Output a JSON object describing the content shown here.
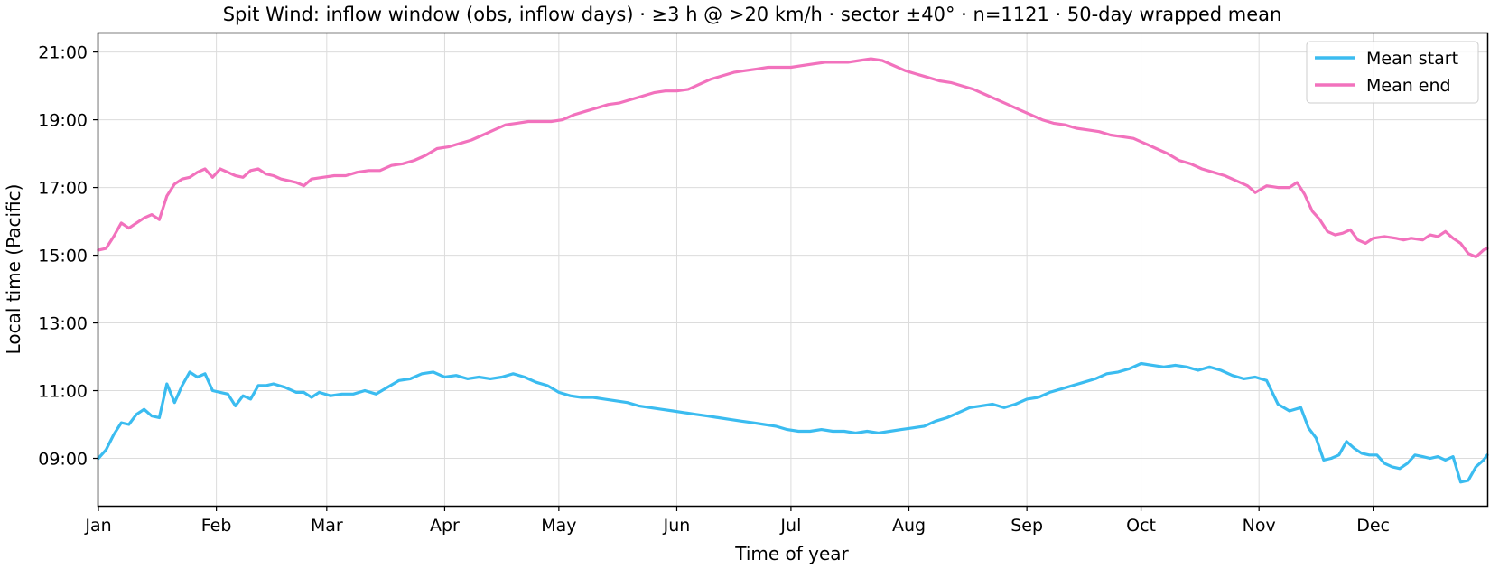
{
  "chart_data": {
    "type": "line",
    "title": "Spit Wind: inflow window (obs, inflow days) · ≥3 h @ >20 km/h · sector ±40° · n=1121 · 50-day wrapped mean",
    "xlabel": "Time of year",
    "ylabel": "Local time (Pacific)",
    "x_unit": "day of year",
    "xlim": [
      1,
      366
    ],
    "ylim": [
      7.6,
      21.55
    ],
    "y_unit": "hours (local time)",
    "x_ticks": [
      {
        "label": "Jan",
        "value": 1
      },
      {
        "label": "Feb",
        "value": 32
      },
      {
        "label": "Mar",
        "value": 61
      },
      {
        "label": "Apr",
        "value": 92
      },
      {
        "label": "May",
        "value": 122
      },
      {
        "label": "Jun",
        "value": 153
      },
      {
        "label": "Jul",
        "value": 183
      },
      {
        "label": "Aug",
        "value": 214
      },
      {
        "label": "Sep",
        "value": 245
      },
      {
        "label": "Oct",
        "value": 275
      },
      {
        "label": "Nov",
        "value": 306
      },
      {
        "label": "Dec",
        "value": 336
      }
    ],
    "y_ticks": [
      {
        "label": "09:00",
        "value": 9
      },
      {
        "label": "11:00",
        "value": 11
      },
      {
        "label": "13:00",
        "value": 13
      },
      {
        "label": "15:00",
        "value": 15
      },
      {
        "label": "17:00",
        "value": 17
      },
      {
        "label": "19:00",
        "value": 19
      },
      {
        "label": "21:00",
        "value": 21
      }
    ],
    "grid": true,
    "legend_position": "top-right",
    "series": [
      {
        "name": "Mean start",
        "color": "#3bbcf0",
        "points": [
          [
            1,
            9.0
          ],
          [
            3,
            9.25
          ],
          [
            5,
            9.7
          ],
          [
            7,
            10.05
          ],
          [
            9,
            10.0
          ],
          [
            11,
            10.3
          ],
          [
            13,
            10.45
          ],
          [
            15,
            10.25
          ],
          [
            17,
            10.2
          ],
          [
            19,
            11.2
          ],
          [
            21,
            10.65
          ],
          [
            23,
            11.15
          ],
          [
            25,
            11.55
          ],
          [
            27,
            11.4
          ],
          [
            29,
            11.5
          ],
          [
            31,
            11.0
          ],
          [
            33,
            10.95
          ],
          [
            35,
            10.9
          ],
          [
            37,
            10.55
          ],
          [
            39,
            10.85
          ],
          [
            41,
            10.75
          ],
          [
            43,
            11.15
          ],
          [
            45,
            11.15
          ],
          [
            47,
            11.2
          ],
          [
            50,
            11.1
          ],
          [
            53,
            10.95
          ],
          [
            55,
            10.95
          ],
          [
            57,
            10.8
          ],
          [
            59,
            10.95
          ],
          [
            62,
            10.85
          ],
          [
            65,
            10.9
          ],
          [
            68,
            10.9
          ],
          [
            71,
            11.0
          ],
          [
            74,
            10.9
          ],
          [
            77,
            11.1
          ],
          [
            80,
            11.3
          ],
          [
            83,
            11.35
          ],
          [
            86,
            11.5
          ],
          [
            89,
            11.55
          ],
          [
            92,
            11.4
          ],
          [
            95,
            11.45
          ],
          [
            98,
            11.35
          ],
          [
            101,
            11.4
          ],
          [
            104,
            11.35
          ],
          [
            107,
            11.4
          ],
          [
            110,
            11.5
          ],
          [
            113,
            11.4
          ],
          [
            116,
            11.25
          ],
          [
            119,
            11.15
          ],
          [
            122,
            10.95
          ],
          [
            125,
            10.85
          ],
          [
            128,
            10.8
          ],
          [
            131,
            10.8
          ],
          [
            134,
            10.75
          ],
          [
            137,
            10.7
          ],
          [
            140,
            10.65
          ],
          [
            143,
            10.55
          ],
          [
            146,
            10.5
          ],
          [
            149,
            10.45
          ],
          [
            152,
            10.4
          ],
          [
            155,
            10.35
          ],
          [
            158,
            10.3
          ],
          [
            161,
            10.25
          ],
          [
            164,
            10.2
          ],
          [
            167,
            10.15
          ],
          [
            170,
            10.1
          ],
          [
            173,
            10.05
          ],
          [
            176,
            10.0
          ],
          [
            179,
            9.95
          ],
          [
            182,
            9.85
          ],
          [
            185,
            9.8
          ],
          [
            188,
            9.8
          ],
          [
            191,
            9.85
          ],
          [
            194,
            9.8
          ],
          [
            197,
            9.8
          ],
          [
            200,
            9.75
          ],
          [
            203,
            9.8
          ],
          [
            206,
            9.75
          ],
          [
            209,
            9.8
          ],
          [
            212,
            9.85
          ],
          [
            215,
            9.9
          ],
          [
            218,
            9.95
          ],
          [
            221,
            10.1
          ],
          [
            224,
            10.2
          ],
          [
            227,
            10.35
          ],
          [
            230,
            10.5
          ],
          [
            233,
            10.55
          ],
          [
            236,
            10.6
          ],
          [
            239,
            10.5
          ],
          [
            242,
            10.6
          ],
          [
            245,
            10.75
          ],
          [
            248,
            10.8
          ],
          [
            251,
            10.95
          ],
          [
            254,
            11.05
          ],
          [
            257,
            11.15
          ],
          [
            260,
            11.25
          ],
          [
            263,
            11.35
          ],
          [
            266,
            11.5
          ],
          [
            269,
            11.55
          ],
          [
            272,
            11.65
          ],
          [
            275,
            11.8
          ],
          [
            278,
            11.75
          ],
          [
            281,
            11.7
          ],
          [
            284,
            11.75
          ],
          [
            287,
            11.7
          ],
          [
            290,
            11.6
          ],
          [
            293,
            11.7
          ],
          [
            296,
            11.6
          ],
          [
            299,
            11.45
          ],
          [
            302,
            11.35
          ],
          [
            305,
            11.4
          ],
          [
            308,
            11.3
          ],
          [
            311,
            10.6
          ],
          [
            314,
            10.4
          ],
          [
            317,
            10.5
          ],
          [
            319,
            9.9
          ],
          [
            321,
            9.6
          ],
          [
            323,
            8.95
          ],
          [
            325,
            9.0
          ],
          [
            327,
            9.1
          ],
          [
            329,
            9.5
          ],
          [
            331,
            9.3
          ],
          [
            333,
            9.15
          ],
          [
            335,
            9.1
          ],
          [
            337,
            9.1
          ],
          [
            339,
            8.85
          ],
          [
            341,
            8.75
          ],
          [
            343,
            8.7
          ],
          [
            345,
            8.85
          ],
          [
            347,
            9.1
          ],
          [
            349,
            9.05
          ],
          [
            351,
            9.0
          ],
          [
            353,
            9.05
          ],
          [
            355,
            8.95
          ],
          [
            357,
            9.05
          ],
          [
            359,
            8.3
          ],
          [
            361,
            8.35
          ],
          [
            363,
            8.75
          ],
          [
            365,
            8.95
          ],
          [
            366,
            9.1
          ]
        ]
      },
      {
        "name": "Mean end",
        "color": "#f272bd",
        "points": [
          [
            1,
            15.15
          ],
          [
            3,
            15.2
          ],
          [
            5,
            15.55
          ],
          [
            7,
            15.95
          ],
          [
            9,
            15.8
          ],
          [
            11,
            15.95
          ],
          [
            13,
            16.1
          ],
          [
            15,
            16.2
          ],
          [
            17,
            16.05
          ],
          [
            19,
            16.75
          ],
          [
            21,
            17.1
          ],
          [
            23,
            17.25
          ],
          [
            25,
            17.3
          ],
          [
            27,
            17.45
          ],
          [
            29,
            17.55
          ],
          [
            31,
            17.3
          ],
          [
            33,
            17.55
          ],
          [
            35,
            17.45
          ],
          [
            37,
            17.35
          ],
          [
            39,
            17.3
          ],
          [
            41,
            17.5
          ],
          [
            43,
            17.55
          ],
          [
            45,
            17.4
          ],
          [
            47,
            17.35
          ],
          [
            49,
            17.25
          ],
          [
            51,
            17.2
          ],
          [
            53,
            17.15
          ],
          [
            55,
            17.05
          ],
          [
            57,
            17.25
          ],
          [
            60,
            17.3
          ],
          [
            63,
            17.35
          ],
          [
            66,
            17.35
          ],
          [
            69,
            17.45
          ],
          [
            72,
            17.5
          ],
          [
            75,
            17.5
          ],
          [
            78,
            17.65
          ],
          [
            81,
            17.7
          ],
          [
            84,
            17.8
          ],
          [
            87,
            17.95
          ],
          [
            90,
            18.15
          ],
          [
            93,
            18.2
          ],
          [
            96,
            18.3
          ],
          [
            99,
            18.4
          ],
          [
            102,
            18.55
          ],
          [
            105,
            18.7
          ],
          [
            108,
            18.85
          ],
          [
            111,
            18.9
          ],
          [
            114,
            18.95
          ],
          [
            117,
            18.95
          ],
          [
            120,
            18.95
          ],
          [
            123,
            19.0
          ],
          [
            126,
            19.15
          ],
          [
            129,
            19.25
          ],
          [
            132,
            19.35
          ],
          [
            135,
            19.45
          ],
          [
            138,
            19.5
          ],
          [
            141,
            19.6
          ],
          [
            144,
            19.7
          ],
          [
            147,
            19.8
          ],
          [
            150,
            19.85
          ],
          [
            153,
            19.85
          ],
          [
            156,
            19.9
          ],
          [
            159,
            20.05
          ],
          [
            162,
            20.2
          ],
          [
            165,
            20.3
          ],
          [
            168,
            20.4
          ],
          [
            171,
            20.45
          ],
          [
            174,
            20.5
          ],
          [
            177,
            20.55
          ],
          [
            180,
            20.55
          ],
          [
            183,
            20.55
          ],
          [
            186,
            20.6
          ],
          [
            189,
            20.65
          ],
          [
            192,
            20.7
          ],
          [
            195,
            20.7
          ],
          [
            198,
            20.7
          ],
          [
            201,
            20.75
          ],
          [
            204,
            20.8
          ],
          [
            207,
            20.75
          ],
          [
            210,
            20.6
          ],
          [
            213,
            20.45
          ],
          [
            216,
            20.35
          ],
          [
            219,
            20.25
          ],
          [
            222,
            20.15
          ],
          [
            225,
            20.1
          ],
          [
            228,
            20.0
          ],
          [
            231,
            19.9
          ],
          [
            234,
            19.75
          ],
          [
            237,
            19.6
          ],
          [
            240,
            19.45
          ],
          [
            243,
            19.3
          ],
          [
            246,
            19.15
          ],
          [
            249,
            19.0
          ],
          [
            252,
            18.9
          ],
          [
            255,
            18.85
          ],
          [
            258,
            18.75
          ],
          [
            261,
            18.7
          ],
          [
            264,
            18.65
          ],
          [
            267,
            18.55
          ],
          [
            270,
            18.5
          ],
          [
            273,
            18.45
          ],
          [
            276,
            18.3
          ],
          [
            279,
            18.15
          ],
          [
            282,
            18.0
          ],
          [
            285,
            17.8
          ],
          [
            288,
            17.7
          ],
          [
            291,
            17.55
          ],
          [
            294,
            17.45
          ],
          [
            297,
            17.35
          ],
          [
            300,
            17.2
          ],
          [
            303,
            17.05
          ],
          [
            305,
            16.85
          ],
          [
            308,
            17.05
          ],
          [
            311,
            17.0
          ],
          [
            314,
            17.0
          ],
          [
            316,
            17.15
          ],
          [
            318,
            16.8
          ],
          [
            320,
            16.3
          ],
          [
            322,
            16.05
          ],
          [
            324,
            15.7
          ],
          [
            326,
            15.6
          ],
          [
            328,
            15.65
          ],
          [
            330,
            15.75
          ],
          [
            332,
            15.45
          ],
          [
            334,
            15.35
          ],
          [
            336,
            15.5
          ],
          [
            339,
            15.55
          ],
          [
            342,
            15.5
          ],
          [
            344,
            15.45
          ],
          [
            346,
            15.5
          ],
          [
            349,
            15.45
          ],
          [
            351,
            15.6
          ],
          [
            353,
            15.55
          ],
          [
            355,
            15.7
          ],
          [
            357,
            15.5
          ],
          [
            359,
            15.35
          ],
          [
            361,
            15.05
          ],
          [
            363,
            14.95
          ],
          [
            365,
            15.15
          ],
          [
            366,
            15.2
          ]
        ]
      }
    ]
  }
}
